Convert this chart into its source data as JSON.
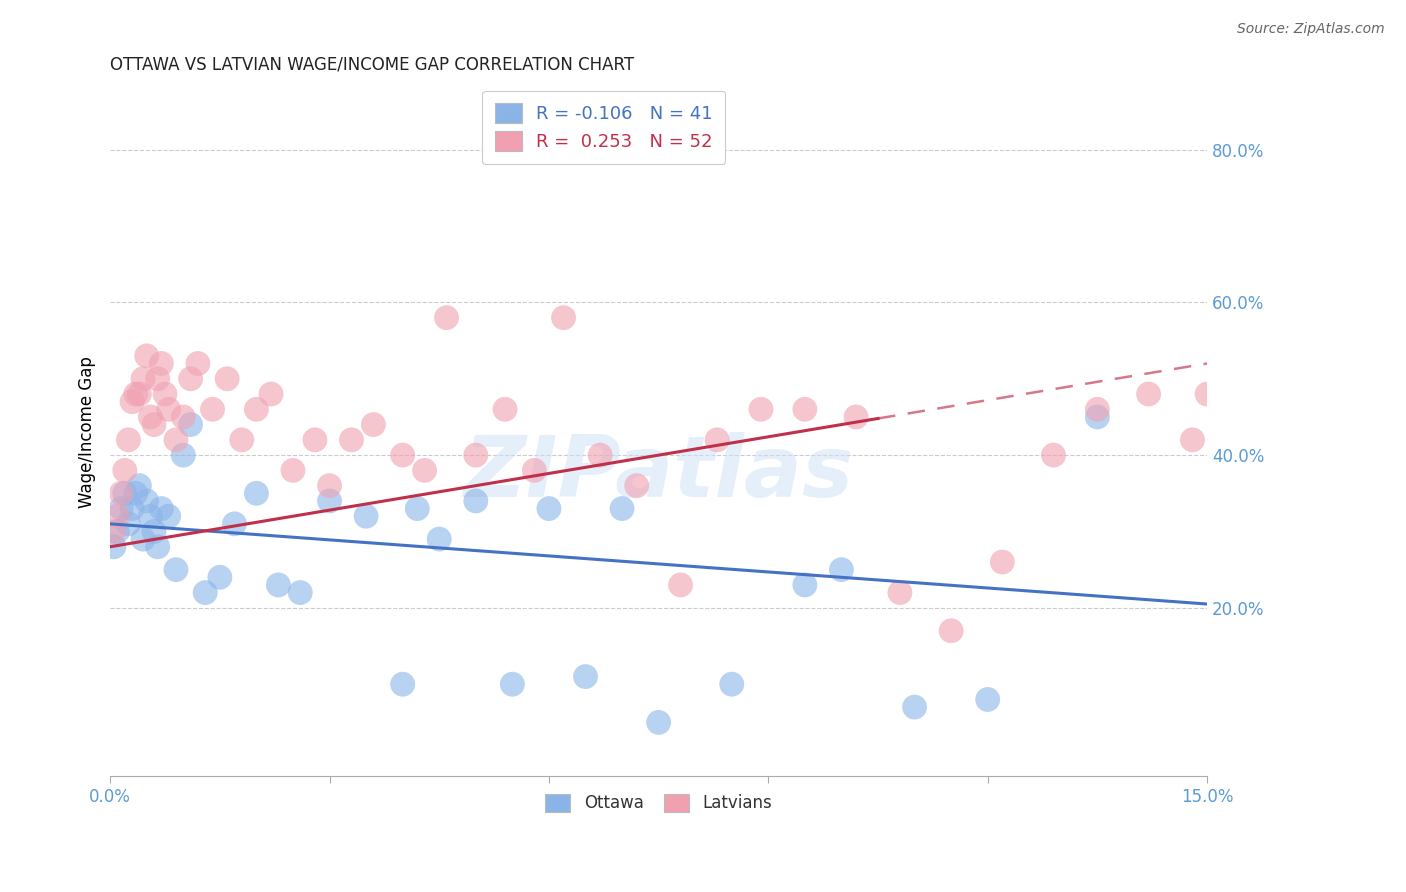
{
  "title": "OTTAWA VS LATVIAN WAGE/INCOME GAP CORRELATION CHART",
  "source": "Source: ZipAtlas.com",
  "ylabel": "Wage/Income Gap",
  "legend_blue_r": "-0.106",
  "legend_blue_n": "41",
  "legend_pink_r": "0.253",
  "legend_pink_n": "52",
  "watermark": "ZIPatlas",
  "blue_color": "#8ab4e8",
  "pink_color": "#f0a0b0",
  "blue_line_color": "#4472c4",
  "pink_line_color": "#c0304a",
  "axis_color": "#5b9bd5",
  "background_color": "#ffffff",
  "title_fontsize": 12,
  "xlim": [
    0.0,
    15.0
  ],
  "ylim": [
    -2.0,
    88.0
  ],
  "yticks": [
    20.0,
    40.0,
    60.0,
    80.0
  ],
  "xticks": [
    0.0,
    3.0,
    6.0,
    9.0,
    12.0,
    15.0
  ],
  "Ottawa_x": [
    0.05,
    0.1,
    0.15,
    0.2,
    0.25,
    0.3,
    0.35,
    0.4,
    0.45,
    0.5,
    0.55,
    0.6,
    0.65,
    0.7,
    0.8,
    0.9,
    1.0,
    1.1,
    1.3,
    1.5,
    1.7,
    2.0,
    2.3,
    2.6,
    3.0,
    3.5,
    4.0,
    4.2,
    4.5,
    5.0,
    5.5,
    6.0,
    6.5,
    7.0,
    7.5,
    8.5,
    9.5,
    10.0,
    11.0,
    12.0,
    13.5
  ],
  "Ottawa_y": [
    28,
    30,
    33,
    35,
    31,
    33,
    35,
    36,
    29,
    34,
    32,
    30,
    28,
    33,
    32,
    25,
    40,
    44,
    22,
    24,
    31,
    35,
    23,
    22,
    34,
    32,
    10,
    33,
    29,
    34,
    10,
    33,
    11,
    33,
    5,
    10,
    23,
    25,
    7,
    8,
    45
  ],
  "Latvians_x": [
    0.05,
    0.1,
    0.15,
    0.2,
    0.25,
    0.3,
    0.35,
    0.4,
    0.45,
    0.5,
    0.55,
    0.6,
    0.65,
    0.7,
    0.75,
    0.8,
    0.9,
    1.0,
    1.1,
    1.2,
    1.4,
    1.6,
    1.8,
    2.0,
    2.2,
    2.5,
    2.8,
    3.0,
    3.3,
    3.6,
    4.0,
    4.3,
    4.6,
    5.0,
    5.4,
    5.8,
    6.2,
    6.7,
    7.2,
    7.8,
    8.3,
    8.9,
    9.5,
    10.2,
    10.8,
    11.5,
    12.2,
    12.9,
    13.5,
    14.2,
    14.8,
    15.0
  ],
  "Latvians_y": [
    30,
    32,
    35,
    38,
    42,
    47,
    48,
    48,
    50,
    53,
    45,
    44,
    50,
    52,
    48,
    46,
    42,
    45,
    50,
    52,
    46,
    50,
    42,
    46,
    48,
    38,
    42,
    36,
    42,
    44,
    40,
    38,
    58,
    40,
    46,
    38,
    58,
    40,
    36,
    23,
    42,
    46,
    46,
    45,
    22,
    17,
    26,
    40,
    46,
    48,
    42,
    48
  ],
  "blue_line_x0": 0.0,
  "blue_line_y0": 31.0,
  "blue_line_x1": 15.0,
  "blue_line_y1": 20.5,
  "pink_line_x0": 0.0,
  "pink_line_y0": 28.0,
  "pink_line_x1": 15.0,
  "pink_line_y1": 52.0,
  "pink_solid_end_x": 10.5,
  "pink_dashed_start_x": 10.5
}
